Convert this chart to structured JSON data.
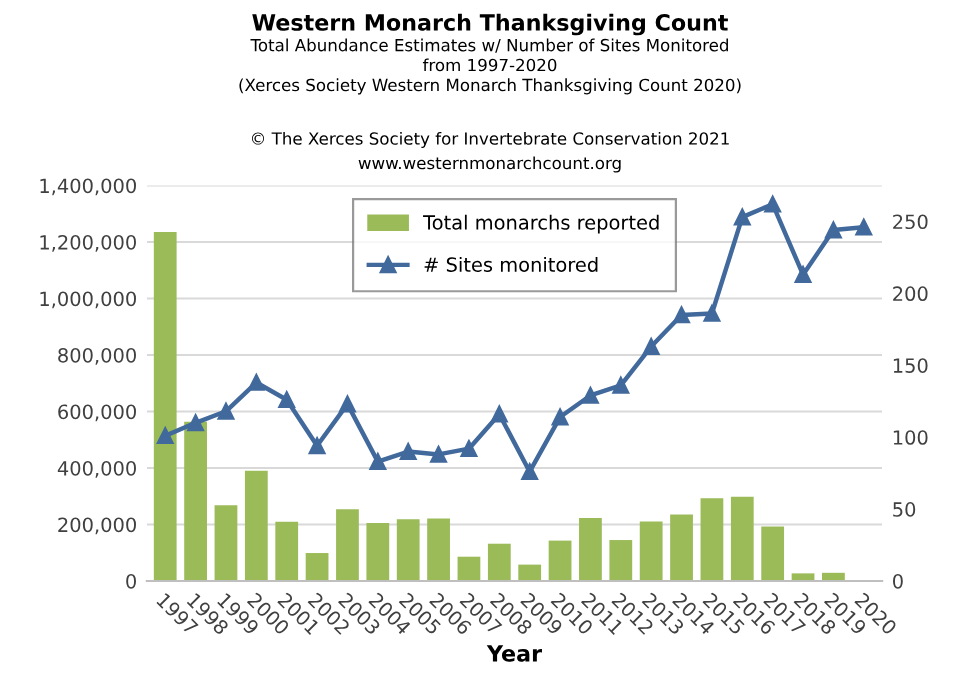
{
  "chart_data": {
    "type": "bar",
    "title": "Western Monarch Thanksgiving Count",
    "subtitle": "Total Abundance Estimates w/ Number of Sites Monitored\nfrom 1997-2020\n(Xerces Society Western Monarch Thanksgiving Count 2020)",
    "annotations": [
      "© The Xerces Society for Invertebrate Conservation 2021",
      "www.westernmonarchcount.org"
    ],
    "xlabel": "Year",
    "categories": [
      "1997",
      "1998",
      "1999",
      "2000",
      "2001",
      "2002",
      "2003",
      "2004",
      "2005",
      "2006",
      "2007",
      "2008",
      "2009",
      "2010",
      "2011",
      "2012",
      "2013",
      "2014",
      "2015",
      "2016",
      "2017",
      "2018",
      "2019",
      "2020"
    ],
    "series": [
      {
        "name": "Total monarchs reported",
        "color": "#9bbb59",
        "values": [
          1235000,
          564000,
          268000,
          390000,
          210000,
          99000,
          254000,
          205000,
          219000,
          221000,
          86000,
          132000,
          58000,
          143000,
          223000,
          145000,
          211000,
          235000,
          293000,
          298000,
          193000,
          27000,
          29000,
          2000
        ]
      },
      {
        "name": "# Sites monitored",
        "type": "line",
        "axis": "y2",
        "color": "#41699c",
        "marker": "triangle",
        "line_style": "solid",
        "values": [
          101,
          110,
          118,
          138,
          126,
          94,
          123,
          83,
          90,
          88,
          92,
          116,
          76,
          114,
          129,
          136,
          163,
          185,
          186,
          253,
          262,
          213,
          244,
          246
        ]
      }
    ],
    "ylim": [
      0,
      1400000
    ],
    "yticks": [
      0,
      {
        "value": 200000,
        "label": "200,000"
      },
      {
        "value": 400000,
        "label": "400,000"
      },
      {
        "value": 600000,
        "label": "600,000"
      },
      {
        "value": 800000,
        "label": "800,000"
      },
      {
        "value": 1000000,
        "label": "1,000,000"
      },
      {
        "value": 1200000,
        "label": "1,200,000"
      },
      {
        "value": 1400000,
        "label": "1,400,000"
      }
    ],
    "y2lim": [
      0,
      275
    ],
    "y2ticks": [
      0,
      50,
      100,
      150,
      200,
      250
    ],
    "grid": "y",
    "legend": "top"
  }
}
